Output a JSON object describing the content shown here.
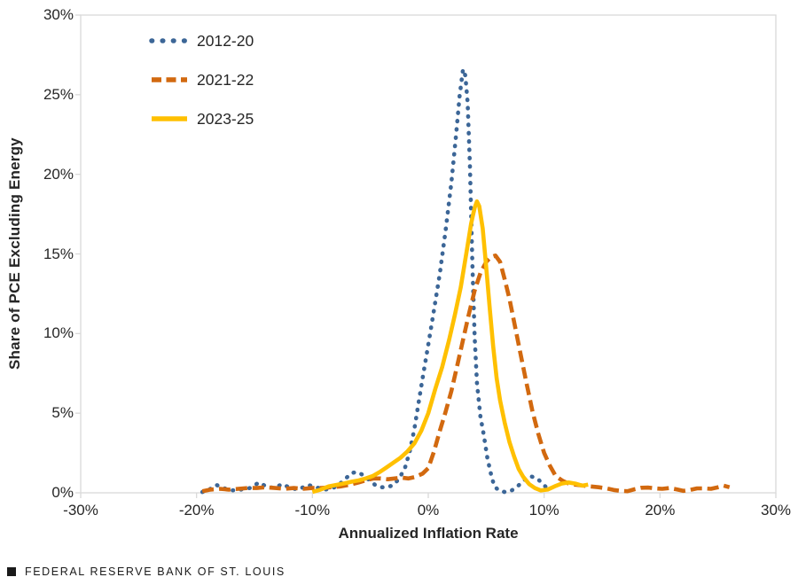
{
  "footer": {
    "brand": "FEDERAL RESERVE BANK OF ST. LOUIS",
    "logo_square_icon": "black-square"
  },
  "chart_data": {
    "type": "line",
    "title": "",
    "xlabel": "Annualized Inflation Rate",
    "ylabel": "Share of PCE Excluding Energy",
    "xlim": [
      -30,
      30
    ],
    "ylim": [
      0,
      30
    ],
    "x_tick_values": [
      -30,
      -20,
      -10,
      0,
      10,
      20,
      30
    ],
    "x_tick_labels": [
      "-30%",
      "-20%",
      "-10%",
      "0%",
      "10%",
      "20%",
      "30%"
    ],
    "y_tick_values": [
      0,
      5,
      10,
      15,
      20,
      25,
      30
    ],
    "y_tick_labels": [
      "0%",
      "5%",
      "10%",
      "15%",
      "20%",
      "25%",
      "30%"
    ],
    "grid": false,
    "legend_position": "inside-top-left",
    "axis_color": "#D9D9D9",
    "text_color": "#262626",
    "series": [
      {
        "name": "2012-20",
        "color": "#3C6697",
        "style": "dotted",
        "points": [
          [
            -19.5,
            0.05
          ],
          [
            -19,
            0.15
          ],
          [
            -18.3,
            0.5
          ],
          [
            -17.7,
            0.3
          ],
          [
            -17,
            0.15
          ],
          [
            -16.2,
            0.2
          ],
          [
            -15.4,
            0.3
          ],
          [
            -14.6,
            0.65
          ],
          [
            -14,
            0.4
          ],
          [
            -13.3,
            0.3
          ],
          [
            -12.6,
            0.55
          ],
          [
            -11.9,
            0.3
          ],
          [
            -11.2,
            0.2
          ],
          [
            -10.4,
            0.5
          ],
          [
            -9.7,
            0.35
          ],
          [
            -9,
            0.2
          ],
          [
            -8.4,
            0.25
          ],
          [
            -7.8,
            0.45
          ],
          [
            -7.2,
            0.85
          ],
          [
            -6.6,
            1.25
          ],
          [
            -6.1,
            1.3
          ],
          [
            -5.6,
            1.1
          ],
          [
            -5.1,
            0.8
          ],
          [
            -4.6,
            0.5
          ],
          [
            -4.1,
            0.35
          ],
          [
            -3.5,
            0.35
          ],
          [
            -3,
            0.5
          ],
          [
            -2.5,
            0.9
          ],
          [
            -2,
            1.6
          ],
          [
            -1.6,
            2.6
          ],
          [
            -1.2,
            4.0
          ],
          [
            -0.8,
            5.8
          ],
          [
            -0.4,
            7.6
          ],
          [
            0,
            9.3
          ],
          [
            0.5,
            11.5
          ],
          [
            1,
            13.8
          ],
          [
            1.5,
            16.5
          ],
          [
            2,
            19.5
          ],
          [
            2.4,
            22.5
          ],
          [
            2.7,
            24.9
          ],
          [
            3,
            26.6
          ],
          [
            3.2,
            26.2
          ],
          [
            3.4,
            24.5
          ],
          [
            3.6,
            20.5
          ],
          [
            3.8,
            14.5
          ],
          [
            4,
            9.8
          ],
          [
            4.2,
            6.9
          ],
          [
            4.5,
            4.8
          ],
          [
            4.8,
            3.6
          ],
          [
            5.1,
            2.2
          ],
          [
            5.4,
            1.2
          ],
          [
            5.7,
            0.4
          ],
          [
            6.1,
            0.15
          ],
          [
            6.6,
            0.05
          ],
          [
            7.1,
            0.1
          ],
          [
            7.7,
            0.4
          ],
          [
            8.3,
            0.8
          ],
          [
            8.8,
            1.05
          ],
          [
            9.4,
            0.9
          ],
          [
            9.9,
            0.55
          ],
          [
            10.3,
            0.25
          ],
          [
            10.6,
            0.1
          ]
        ]
      },
      {
        "name": "2021-22",
        "color": "#D2690F",
        "style": "dashed",
        "points": [
          [
            -19.5,
            0.1
          ],
          [
            -18.8,
            0.2
          ],
          [
            -18,
            0.25
          ],
          [
            -17.2,
            0.2
          ],
          [
            -16.4,
            0.25
          ],
          [
            -15.6,
            0.3
          ],
          [
            -14.8,
            0.3
          ],
          [
            -14,
            0.35
          ],
          [
            -13.2,
            0.3
          ],
          [
            -12.4,
            0.25
          ],
          [
            -11.6,
            0.3
          ],
          [
            -10.8,
            0.25
          ],
          [
            -10,
            0.3
          ],
          [
            -9.2,
            0.3
          ],
          [
            -8.4,
            0.35
          ],
          [
            -7.6,
            0.4
          ],
          [
            -6.8,
            0.5
          ],
          [
            -6,
            0.65
          ],
          [
            -5.3,
            0.8
          ],
          [
            -4.7,
            0.9
          ],
          [
            -4.1,
            0.9
          ],
          [
            -3.5,
            0.85
          ],
          [
            -2.9,
            0.9
          ],
          [
            -2.3,
            0.95
          ],
          [
            -1.7,
            0.9
          ],
          [
            -1.1,
            1.0
          ],
          [
            -0.5,
            1.2
          ],
          [
            0,
            1.55
          ],
          [
            0.5,
            2.6
          ],
          [
            1,
            3.9
          ],
          [
            1.5,
            5.1
          ],
          [
            2,
            6.4
          ],
          [
            2.5,
            8.0
          ],
          [
            3,
            9.6
          ],
          [
            3.5,
            11.2
          ],
          [
            4,
            12.7
          ],
          [
            4.5,
            13.8
          ],
          [
            5,
            14.5
          ],
          [
            5.4,
            14.8
          ],
          [
            5.8,
            14.9
          ],
          [
            6.2,
            14.5
          ],
          [
            6.6,
            13.4
          ],
          [
            7,
            12.2
          ],
          [
            7.5,
            10.4
          ],
          [
            8,
            8.6
          ],
          [
            8.5,
            6.8
          ],
          [
            9,
            5.1
          ],
          [
            9.5,
            3.7
          ],
          [
            10,
            2.5
          ],
          [
            10.5,
            1.7
          ],
          [
            11,
            1.05
          ],
          [
            11.6,
            0.75
          ],
          [
            12.2,
            0.55
          ],
          [
            12.8,
            0.5
          ],
          [
            13.4,
            0.45
          ],
          [
            14,
            0.4
          ],
          [
            14.7,
            0.35
          ],
          [
            15.4,
            0.28
          ],
          [
            16,
            0.18
          ],
          [
            16.6,
            0.12
          ],
          [
            17.2,
            0.1
          ],
          [
            17.8,
            0.22
          ],
          [
            18.4,
            0.32
          ],
          [
            19,
            0.33
          ],
          [
            19.6,
            0.28
          ],
          [
            20.2,
            0.25
          ],
          [
            20.8,
            0.3
          ],
          [
            21.4,
            0.22
          ],
          [
            22,
            0.12
          ],
          [
            22.6,
            0.18
          ],
          [
            23.2,
            0.28
          ],
          [
            23.8,
            0.28
          ],
          [
            24.4,
            0.25
          ],
          [
            25,
            0.35
          ],
          [
            25.5,
            0.45
          ],
          [
            26,
            0.35
          ]
        ]
      },
      {
        "name": "2023-25",
        "color": "#FFC000",
        "style": "solid",
        "points": [
          [
            -10,
            0.05
          ],
          [
            -9.3,
            0.2
          ],
          [
            -8.6,
            0.4
          ],
          [
            -7.9,
            0.5
          ],
          [
            -7.2,
            0.6
          ],
          [
            -6.6,
            0.7
          ],
          [
            -6,
            0.78
          ],
          [
            -5.4,
            0.9
          ],
          [
            -4.8,
            1.05
          ],
          [
            -4.2,
            1.3
          ],
          [
            -3.6,
            1.6
          ],
          [
            -3,
            1.9
          ],
          [
            -2.4,
            2.2
          ],
          [
            -1.8,
            2.6
          ],
          [
            -1.2,
            3.1
          ],
          [
            -0.6,
            3.9
          ],
          [
            0,
            5.0
          ],
          [
            0.6,
            6.5
          ],
          [
            1.2,
            7.9
          ],
          [
            1.8,
            9.6
          ],
          [
            2.3,
            11.2
          ],
          [
            2.8,
            12.9
          ],
          [
            3.3,
            15.1
          ],
          [
            3.7,
            16.9
          ],
          [
            4,
            17.9
          ],
          [
            4.2,
            18.3
          ],
          [
            4.4,
            18.0
          ],
          [
            4.7,
            16.6
          ],
          [
            5,
            14.2
          ],
          [
            5.3,
            11.6
          ],
          [
            5.6,
            9.2
          ],
          [
            5.9,
            7.2
          ],
          [
            6.2,
            5.8
          ],
          [
            6.6,
            4.4
          ],
          [
            7,
            3.2
          ],
          [
            7.4,
            2.3
          ],
          [
            7.8,
            1.5
          ],
          [
            8.2,
            1.0
          ],
          [
            8.7,
            0.55
          ],
          [
            9.2,
            0.3
          ],
          [
            9.7,
            0.15
          ],
          [
            10.3,
            0.2
          ],
          [
            10.9,
            0.4
          ],
          [
            11.5,
            0.58
          ],
          [
            12.1,
            0.65
          ],
          [
            12.7,
            0.58
          ],
          [
            13.3,
            0.45
          ],
          [
            13.8,
            0.52
          ]
        ]
      }
    ]
  }
}
